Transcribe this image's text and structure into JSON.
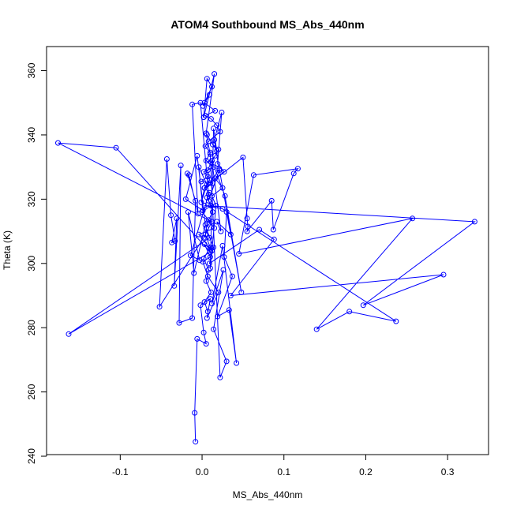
{
  "chart_data": {
    "type": "line",
    "title": "ATOM4 Southbound MS_Abs_440nm",
    "xlabel": "MS_Abs_440nm",
    "ylabel": "Theta (K)",
    "xlim": [
      -0.19,
      0.35
    ],
    "ylim": [
      240.5,
      367.5
    ],
    "xticks": [
      -0.1,
      0.0,
      0.1,
      0.2,
      0.3
    ],
    "xtick_labels": [
      "-0.1",
      "0.0",
      "0.1",
      "0.2",
      "0.3"
    ],
    "yticks": [
      240,
      260,
      280,
      300,
      320,
      340,
      360
    ],
    "ytick_labels": [
      "240",
      "260",
      "280",
      "300",
      "320",
      "340",
      "360"
    ],
    "grid": false,
    "legend": "none",
    "colors": {
      "series": "#0000ff",
      "frame": "#000000"
    },
    "series": [
      {
        "x": [
          -0.008,
          -0.009,
          -0.006,
          0.005,
          0.002,
          -0.002,
          0.01,
          0.006,
          0.02,
          0.007,
          0.001,
          0.01,
          0.003,
          0.012,
          -0.004,
          0.015,
          0.008,
          0.0,
          0.011,
          0.006,
          0.009,
          0.003,
          0.013,
          -0.001,
          0.007,
          0.002,
          0.014,
          0.005,
          0.01,
          0.004,
          0.008,
          0.022,
          0.018,
          0.011,
          0.004,
          0.016,
          0.003,
          0.009,
          0.001,
          0.012,
          0.006,
          0.002,
          0.015,
          0.005,
          0.01,
          0.022,
          0.03,
          0.014,
          0.026,
          0.012,
          0.025,
          0.042,
          0.033,
          0.019,
          0.037,
          0.027,
          0.03,
          0.035,
          0.018,
          0.023,
          0.012,
          0.028,
          0.048,
          0.021,
          0.01,
          0.05,
          0.055,
          0.056,
          0.055,
          0.085,
          0.087,
          0.112,
          0.117,
          0.063,
          0.045,
          0.257,
          0.14,
          0.18,
          0.237,
          0.025,
          0.003,
          0.333,
          0.197,
          0.295,
          0.035,
          0.088,
          0.07,
          0.009,
          0.014,
          0.005,
          0.009,
          -0.163,
          0.01,
          -0.105,
          -0.176,
          0.012,
          0.002,
          -0.052,
          -0.043,
          -0.038,
          -0.033,
          -0.037,
          -0.031,
          -0.034,
          -0.026,
          -0.028,
          -0.012,
          -0.008,
          -0.018,
          -0.016,
          -0.005,
          -0.012,
          -0.002,
          0.008,
          -0.014,
          -0.003,
          -0.017,
          -0.01,
          0.004,
          -0.006,
          -0.02,
          0.001,
          -0.004,
          0.006,
          -0.001,
          0.003,
          0.009,
          0.007,
          0.011,
          0.016,
          0.02,
          0.013,
          0.006,
          0.018,
          0.014,
          0.01,
          0.017,
          0.012,
          0.025,
          0.016,
          0.027,
          0.019,
          0.024,
          0.015,
          0.021,
          0.008,
          0.013,
          0.006,
          0.004,
          0.01,
          0.002,
          0.008,
          0.005,
          0.011,
          0.003,
          0.007
        ],
        "y": [
          244.5,
          253.5,
          276.5,
          275.0,
          278.5,
          287.0,
          289.0,
          283.0,
          291.0,
          296.0,
          300.5,
          302.0,
          306.0,
          304.0,
          309.0,
          311.0,
          313.5,
          316.0,
          318.0,
          320.5,
          322.0,
          323.5,
          325.0,
          325.5,
          327.0,
          328.5,
          330.0,
          332.0,
          334.5,
          336.5,
          338.0,
          341.0,
          343.0,
          345.0,
          346.0,
          347.5,
          350.0,
          352.5,
          349.0,
          355.0,
          357.5,
          345.5,
          359.0,
          340.5,
          334.0,
          264.5,
          269.5,
          279.5,
          298.0,
          287.5,
          305.5,
          269.0,
          285.5,
          283.5,
          296.0,
          302.0,
          316.0,
          309.0,
          313.0,
          310.0,
          332.0,
          321.0,
          291.0,
          329.5,
          325.0,
          333.0,
          314.0,
          311.5,
          310.0,
          319.5,
          310.5,
          328.0,
          329.5,
          327.5,
          303.0,
          314.0,
          279.5,
          285.0,
          282.0,
          317.0,
          318.0,
          313.0,
          287.0,
          296.5,
          290.0,
          307.5,
          310.5,
          300.0,
          305.0,
          311.0,
          308.0,
          278.0,
          303.5,
          336.0,
          337.5,
          313.0,
          308.0,
          286.5,
          332.5,
          315.0,
          307.0,
          306.5,
          314.0,
          293.0,
          330.5,
          281.5,
          283.0,
          319.5,
          328.0,
          327.5,
          315.5,
          349.5,
          350.0,
          321.5,
          302.5,
          301.0,
          316.0,
          297.0,
          312.0,
          333.5,
          320.0,
          316.5,
          330.0,
          324.5,
          319.0,
          323.5,
          326.0,
          329.0,
          331.5,
          333.5,
          335.5,
          337.0,
          340.0,
          335.0,
          342.0,
          298.5,
          318.0,
          321.0,
          323.5,
          326.5,
          328.5,
          331.0,
          347.0,
          338.5,
          329.0,
          319.5,
          316.0,
          312.5,
          309.0,
          305.0,
          301.5,
          298.0,
          294.5,
          291.0,
          288.0,
          285.0
        ]
      }
    ]
  }
}
